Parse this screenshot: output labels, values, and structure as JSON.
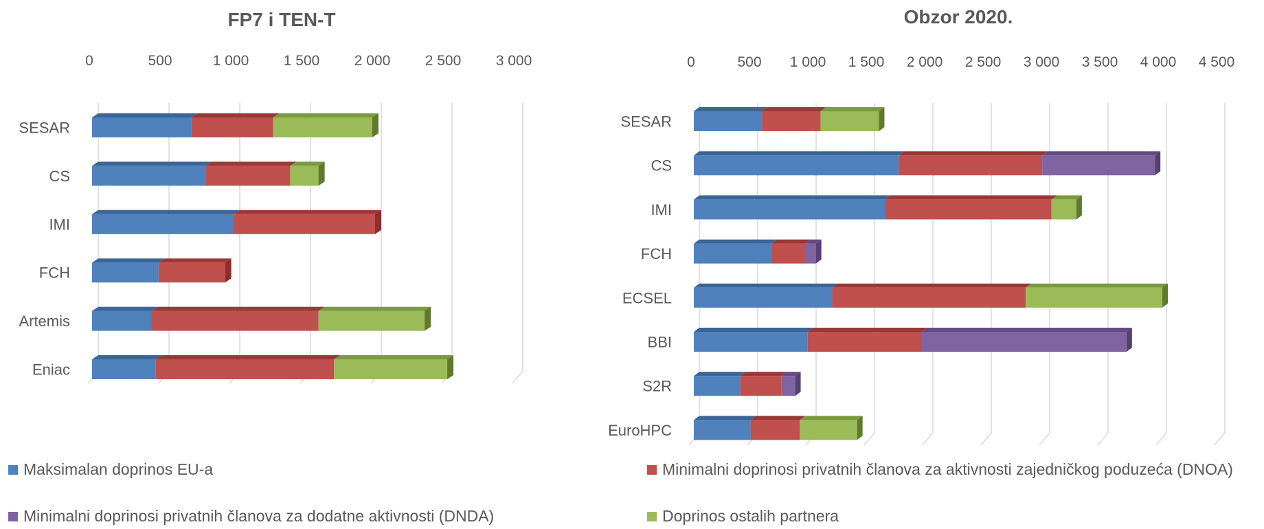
{
  "chart_data": [
    {
      "type": "bar",
      "orientation": "horizontal",
      "stacked": true,
      "style": "3d",
      "title": "FP7 i TEN-T",
      "categories": [
        "SESAR",
        "CS",
        "IMI",
        "FCH",
        "Artemis",
        "Eniac"
      ],
      "series": [
        {
          "name": "Maksimalan doprinos EU-a",
          "values": [
            700,
            800,
            1000,
            470,
            420,
            450
          ]
        },
        {
          "name": "Minimalni doprinosi privatnih članova za aktivnosti zajedničkog poduzeća (DNOA)",
          "values": [
            580,
            600,
            1000,
            470,
            1180,
            1260
          ]
        },
        {
          "name": "Minimalni doprinosi privatnih članova za dodatne aktivnosti (DNDA)",
          "values": [
            0,
            0,
            0,
            0,
            0,
            0
          ]
        },
        {
          "name": "Doprinos ostalih partnera",
          "values": [
            700,
            200,
            0,
            0,
            750,
            800
          ]
        }
      ],
      "tick_labels": [
        "0",
        "500",
        "1 000",
        "1 500",
        "2 000",
        "2 500",
        "3 000"
      ],
      "xlim": [
        0,
        3000
      ],
      "grid": true
    },
    {
      "type": "bar",
      "orientation": "horizontal",
      "stacked": true,
      "style": "3d",
      "title": "Obzor 2020.",
      "categories": [
        "SESAR",
        "CS",
        "IMI",
        "FCH",
        "ECSEL",
        "BBI",
        "S2R",
        "EuroHPC"
      ],
      "series": [
        {
          "name": "Maksimalan doprinos EU-a",
          "values": [
            585,
            1755,
            1638,
            665,
            1185,
            975,
            398,
            486
          ]
        },
        {
          "name": "Minimalni doprinosi privatnih članova za aktivnosti zajedničkog poduzeća (DNOA)",
          "values": [
            500,
            1228,
            1425,
            285,
            1657,
            975,
            350,
            422
          ]
        },
        {
          "name": "Minimalni doprinosi privatnih članova za dodatne aktivnosti (DNDA)",
          "values": [
            0,
            965,
            0,
            95,
            0,
            1755,
            120,
            0
          ]
        },
        {
          "name": "Doprinos ostalih partnera",
          "values": [
            500,
            0,
            213,
            0,
            1170,
            0,
            0,
            490
          ]
        }
      ],
      "tick_labels": [
        "0",
        "500",
        "1 000",
        "1 500",
        "2 000",
        "2 500",
        "3 000",
        "3 500",
        "4 000",
        "4 500"
      ],
      "xlim": [
        0,
        4500
      ],
      "grid": true
    }
  ],
  "legend": {
    "placement": "bottom",
    "items": [
      {
        "label": "Maksimalan doprinos EU-a",
        "color": "#4f81bd"
      },
      {
        "label": "Minimalni doprinosi privatnih članova za aktivnosti zajedničkog poduzeća (DNOA)",
        "color": "#c0504d"
      },
      {
        "label": "Minimalni doprinosi privatnih članova za dodatne aktivnosti (DNDA)",
        "color": "#8064a2"
      },
      {
        "label": "Doprinos ostalih partnera",
        "color": "#9bbb59"
      }
    ]
  },
  "colors": {
    "series_front": [
      "#4f81bd",
      "#c0504d",
      "#8064a2",
      "#9bbb59"
    ],
    "series_top": [
      "#3a6596",
      "#9a3836",
      "#634c82",
      "#7a9a3e"
    ],
    "series_side": [
      "#2f5484",
      "#8c2f2d",
      "#563f73",
      "#5f7a2c"
    ],
    "grid": "#d9d9d9",
    "text": "#595959"
  }
}
